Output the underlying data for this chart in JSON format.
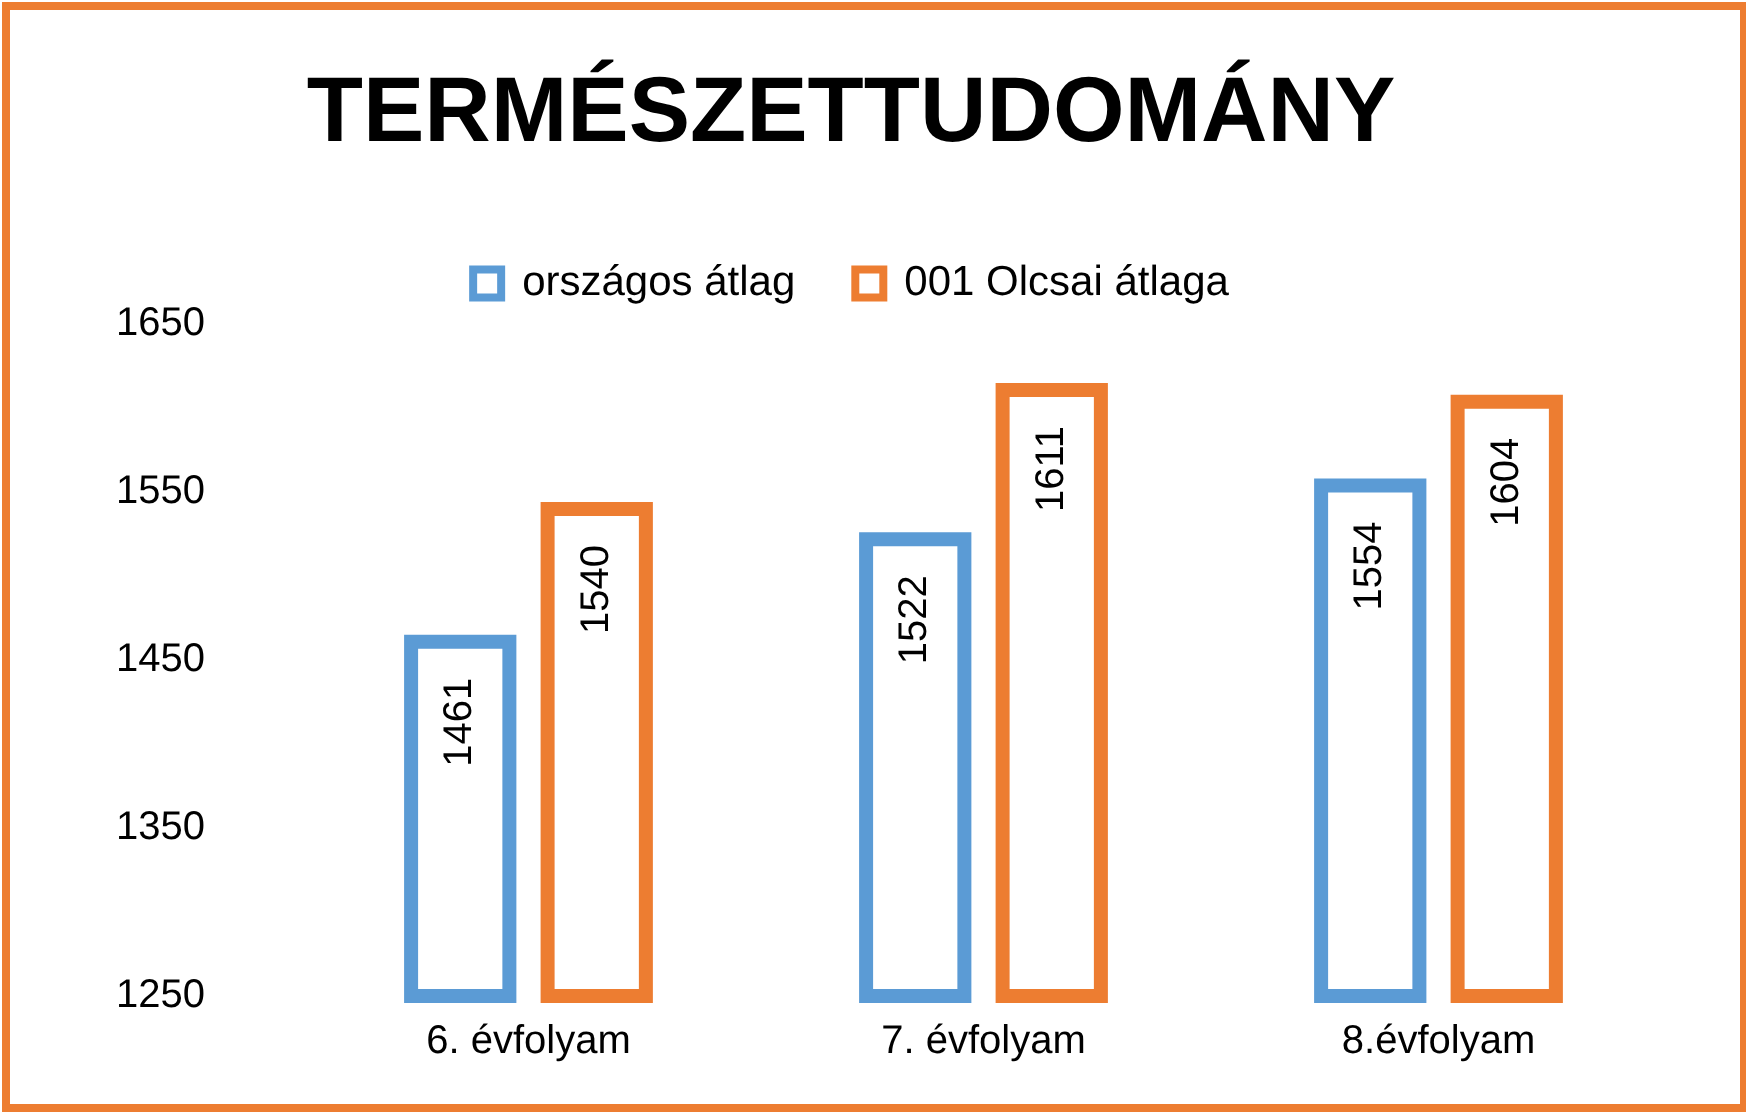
{
  "chart_data": {
    "type": "bar",
    "title": "TERMÉSZETTUDOMÁNY",
    "categories": [
      "6. évfolyam",
      "7. évfolyam",
      "8.évfolyam"
    ],
    "series": [
      {
        "name": "országos átlag",
        "color": "#5b9bd5",
        "values": [
          1461,
          1522,
          1554
        ]
      },
      {
        "name": "001 Olcsai átlaga",
        "color": "#ed7d31",
        "values": [
          1540,
          1611,
          1604
        ]
      }
    ],
    "ylim": [
      1250,
      1650
    ],
    "yticks": [
      1250,
      1350,
      1450,
      1550,
      1650
    ],
    "grid": false,
    "legend": "top",
    "data_labels": true
  }
}
